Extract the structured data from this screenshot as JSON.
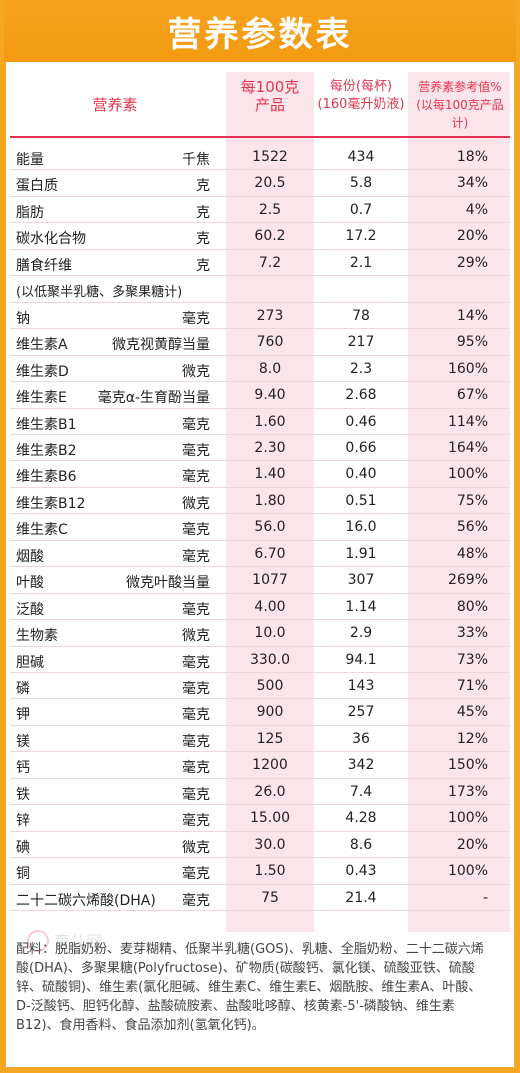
{
  "title": "营养参数表",
  "headers": {
    "nutrient": "营养素",
    "per100_line1": "每100克",
    "per100_line2": "产品",
    "perserving_line1": "每份(每杯)",
    "perserving_line2": "(160毫升奶液)",
    "nrv_line1": "营养素参考值%",
    "nrv_line2": "(以每100克产品计)"
  },
  "rows": [
    {
      "name": "能量",
      "unit": "千焦",
      "v1": "1522",
      "v2": "434",
      "v3": "18%"
    },
    {
      "name": "蛋白质",
      "unit": "克",
      "v1": "20.5",
      "v2": "5.8",
      "v3": "34%"
    },
    {
      "name": "脂肪",
      "unit": "克",
      "v1": "2.5",
      "v2": "0.7",
      "v3": "4%"
    },
    {
      "name": "碳水化合物",
      "unit": "克",
      "v1": "60.2",
      "v2": "17.2",
      "v3": "20%"
    },
    {
      "name": "膳食纤维",
      "unit": "克",
      "v1": "7.2",
      "v2": "2.1",
      "v3": "29%"
    },
    {
      "name": "(以低聚半乳糖、多聚果糖计)",
      "unit": "",
      "v1": "",
      "v2": "",
      "v3": ""
    },
    {
      "name": "钠",
      "unit": "毫克",
      "v1": "273",
      "v2": "78",
      "v3": "14%"
    },
    {
      "name": "维生素A",
      "unit": "微克视黄醇当量",
      "v1": "760",
      "v2": "217",
      "v3": "95%"
    },
    {
      "name": "维生素D",
      "unit": "微克",
      "v1": "8.0",
      "v2": "2.3",
      "v3": "160%"
    },
    {
      "name": "维生素E",
      "unit": "毫克α-生育酚当量",
      "v1": "9.40",
      "v2": "2.68",
      "v3": "67%"
    },
    {
      "name": "维生素B1",
      "unit": "毫克",
      "v1": "1.60",
      "v2": "0.46",
      "v3": "114%"
    },
    {
      "name": "维生素B2",
      "unit": "毫克",
      "v1": "2.30",
      "v2": "0.66",
      "v3": "164%"
    },
    {
      "name": "维生素B6",
      "unit": "毫克",
      "v1": "1.40",
      "v2": "0.40",
      "v3": "100%"
    },
    {
      "name": "维生素B12",
      "unit": "微克",
      "v1": "1.80",
      "v2": "0.51",
      "v3": "75%"
    },
    {
      "name": "维生素C",
      "unit": "毫克",
      "v1": "56.0",
      "v2": "16.0",
      "v3": "56%"
    },
    {
      "name": "烟酸",
      "unit": "毫克",
      "v1": "6.70",
      "v2": "1.91",
      "v3": "48%"
    },
    {
      "name": "叶酸",
      "unit": "微克叶酸当量",
      "v1": "1077",
      "v2": "307",
      "v3": "269%"
    },
    {
      "name": "泛酸",
      "unit": "毫克",
      "v1": "4.00",
      "v2": "1.14",
      "v3": "80%"
    },
    {
      "name": "生物素",
      "unit": "微克",
      "v1": "10.0",
      "v2": "2.9",
      "v3": "33%"
    },
    {
      "name": "胆碱",
      "unit": "毫克",
      "v1": "330.0",
      "v2": "94.1",
      "v3": "73%"
    },
    {
      "name": "磷",
      "unit": "毫克",
      "v1": "500",
      "v2": "143",
      "v3": "71%"
    },
    {
      "name": "钾",
      "unit": "毫克",
      "v1": "900",
      "v2": "257",
      "v3": "45%"
    },
    {
      "name": "镁",
      "unit": "毫克",
      "v1": "125",
      "v2": "36",
      "v3": "12%"
    },
    {
      "name": "钙",
      "unit": "毫克",
      "v1": "1200",
      "v2": "342",
      "v3": "150%"
    },
    {
      "name": "铁",
      "unit": "毫克",
      "v1": "26.0",
      "v2": "7.4",
      "v3": "173%"
    },
    {
      "name": "锌",
      "unit": "毫克",
      "v1": "15.00",
      "v2": "4.28",
      "v3": "100%"
    },
    {
      "name": "碘",
      "unit": "微克",
      "v1": "30.0",
      "v2": "8.6",
      "v3": "20%"
    },
    {
      "name": "铜",
      "unit": "毫克",
      "v1": "1.50",
      "v2": "0.43",
      "v3": "100%"
    },
    {
      "name": "二十二碳六烯酸(DHA)",
      "unit": "毫克",
      "v1": "75",
      "v2": "21.4",
      "v3": "-"
    }
  ],
  "ingredients": "配料：脱脂奶粉、麦芽糊精、低聚半乳糖(GOS)、乳糖、全脂奶粉、二十二碳六烯酸(DHA)、多聚果糖(Polyfructose)、矿物质(碳酸钙、氯化镁、硫酸亚铁、硫酸锌、硫酸铜)、维生素(氯化胆碱、维生素C、维生素E、烟酰胺、维生素A、叶酸、D-泛酸钙、胆钙化醇、盐酸硫胺素、盐酸吡哆醇、核黄素-5'-磷酸钠、维生素B12)、食用香料、食品添加剂(氢氧化钙)。",
  "watermark": "育儿网",
  "colors": {
    "frame": "#f5a623",
    "header_red": "#e5334f",
    "band": "#fbe4ea"
  }
}
